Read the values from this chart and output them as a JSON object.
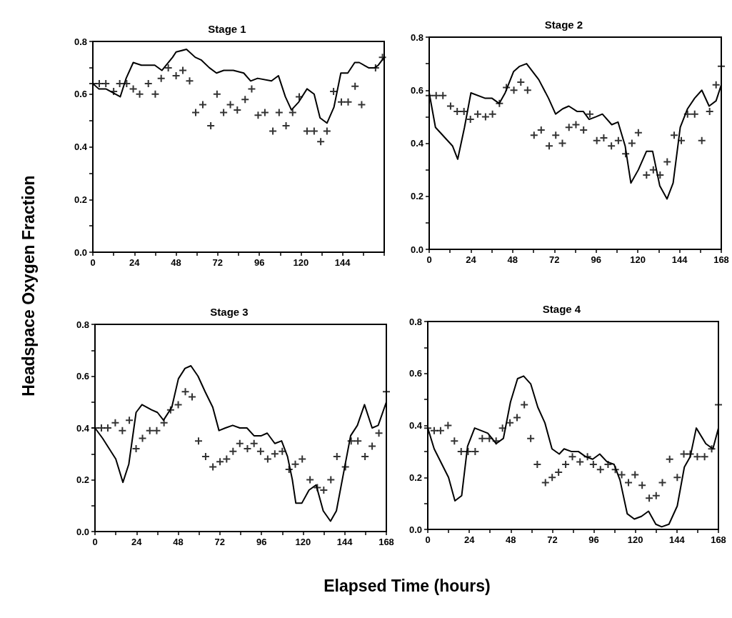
{
  "chart_data": [
    {
      "type": "line",
      "title": "Stage 1",
      "xlabel": "Elapsed Time (hours)",
      "ylabel": "Headspace Oxygen Fraction",
      "xlim": [
        0,
        168
      ],
      "xticks": [
        0,
        {
          "value": 12,
          "label": null
        },
        24,
        {
          "value": 36,
          "label": null
        },
        48,
        {
          "value": 60,
          "label": null
        },
        72,
        {
          "value": 84,
          "label": null
        },
        96,
        {
          "value": 108,
          "label": null
        },
        120,
        {
          "value": 132,
          "label": null
        },
        144,
        {
          "value": 156,
          "label": null
        },
        {
          "value": 168,
          "label": null
        }
      ],
      "ylim": [
        0,
        0.8
      ],
      "yticks": [
        {
          "value": 0,
          "label": "0.0"
        },
        {
          "value": 0.1,
          "label": null
        },
        0.2,
        {
          "value": 0.3,
          "label": null
        },
        0.4,
        {
          "value": 0.5,
          "label": null
        },
        0.6,
        {
          "value": 0.7,
          "label": null
        },
        0.8
      ],
      "series": [
        {
          "type": "line",
          "marker": "none",
          "color": "#000000",
          "x": [
            0,
            3.4,
            7.5,
            15.8,
            19.2,
            23.3,
            28,
            35.7,
            39.8,
            46,
            48,
            54,
            59,
            62.4,
            67.2,
            71.3,
            75.5,
            81,
            87,
            91,
            95,
            103,
            107,
            111,
            114.5,
            118.7,
            123.5,
            127.6,
            131,
            135,
            139,
            143,
            147,
            151,
            153.6,
            159,
            162.5,
            164.6,
            168
          ],
          "values": [
            0.64,
            0.62,
            0.62,
            0.59,
            0.66,
            0.72,
            0.71,
            0.71,
            0.69,
            0.74,
            0.76,
            0.77,
            0.74,
            0.73,
            0.7,
            0.68,
            0.69,
            0.69,
            0.68,
            0.65,
            0.66,
            0.65,
            0.67,
            0.59,
            0.54,
            0.57,
            0.62,
            0.6,
            0.51,
            0.49,
            0.55,
            0.68,
            0.68,
            0.72,
            0.72,
            0.7,
            0.7,
            0.71,
            0.74
          ]
        },
        {
          "type": "scatter",
          "marker": "cross",
          "color": "#000000",
          "x": [
            0,
            3.7,
            7.5,
            12,
            15.5,
            19.5,
            23.3,
            27,
            32,
            36,
            39.4,
            43.5,
            48,
            51.9,
            55.8,
            59.3,
            63.4,
            68,
            71.6,
            75.4,
            79.3,
            83.3,
            87.8,
            91.6,
            95.3,
            99.2,
            103.8,
            107.4,
            111.4,
            115.2,
            119,
            123.5,
            127.6,
            131.4,
            135,
            138.8,
            143.3,
            147.2,
            151.2,
            155,
            163,
            167
          ],
          "values": [
            0.64,
            0.64,
            0.64,
            0.61,
            0.64,
            0.64,
            0.62,
            0.6,
            0.64,
            0.6,
            0.66,
            0.7,
            0.67,
            0.69,
            0.65,
            0.53,
            0.56,
            0.48,
            0.6,
            0.53,
            0.56,
            0.54,
            0.58,
            0.62,
            0.52,
            0.53,
            0.46,
            0.53,
            0.48,
            0.53,
            0.59,
            0.46,
            0.46,
            0.42,
            0.46,
            0.61,
            0.57,
            0.57,
            0.63,
            0.56,
            0.7,
            0.74
          ]
        }
      ]
    },
    {
      "type": "line",
      "title": "Stage 2",
      "xlim": [
        0,
        168
      ],
      "xticks": [
        0,
        {
          "value": 12,
          "label": null
        },
        24,
        {
          "value": 36,
          "label": null
        },
        48,
        {
          "value": 60,
          "label": null
        },
        72,
        {
          "value": 84,
          "label": null
        },
        96,
        {
          "value": 108,
          "label": null
        },
        120,
        {
          "value": 132,
          "label": null
        },
        144,
        {
          "value": 156,
          "label": null
        },
        168
      ],
      "ylim": [
        0,
        0.8
      ],
      "yticks": [
        {
          "value": 0,
          "label": "0.0"
        },
        {
          "value": 0.1,
          "label": null
        },
        0.2,
        {
          "value": 0.3,
          "label": null
        },
        0.4,
        {
          "value": 0.5,
          "label": null
        },
        0.6,
        {
          "value": 0.7,
          "label": null
        },
        0.8
      ],
      "series": [
        {
          "type": "line",
          "marker": "none",
          "color": "#000000",
          "x": [
            0,
            3.6,
            13.4,
            16.4,
            20.3,
            24,
            32,
            36,
            40.3,
            43.7,
            48.5,
            52,
            56,
            63,
            68.6,
            72.7,
            76.8,
            80.3,
            85,
            88.6,
            92,
            96,
            99.6,
            105,
            108.6,
            112.7,
            116,
            120.3,
            125,
            128.5,
            132.6,
            136.8,
            140.3,
            144.4,
            148.6,
            152.7,
            156.8,
            161,
            165,
            168
          ],
          "values": [
            0.59,
            0.46,
            0.39,
            0.34,
            0.46,
            0.59,
            0.57,
            0.57,
            0.55,
            0.59,
            0.67,
            0.69,
            0.7,
            0.64,
            0.57,
            0.51,
            0.53,
            0.54,
            0.52,
            0.52,
            0.49,
            0.5,
            0.51,
            0.47,
            0.48,
            0.39,
            0.25,
            0.3,
            0.37,
            0.37,
            0.24,
            0.19,
            0.25,
            0.46,
            0.53,
            0.57,
            0.6,
            0.54,
            0.56,
            0.62
          ]
        },
        {
          "type": "scatter",
          "marker": "cross",
          "color": "#000000",
          "x": [
            0,
            4,
            7.9,
            12.3,
            16.1,
            20,
            23.7,
            27.9,
            32.4,
            36.4,
            40.4,
            44.4,
            48.7,
            52.7,
            56.6,
            60.3,
            64.4,
            69,
            72.8,
            76.6,
            80.4,
            84.4,
            88.8,
            92.4,
            96.4,
            100.4,
            104.8,
            108.8,
            113,
            116.6,
            120.3,
            125,
            128.9,
            132.8,
            136.9,
            140.9,
            145,
            148.6,
            152.7,
            156.8,
            161.3,
            165,
            168
          ],
          "values": [
            0.58,
            0.58,
            0.58,
            0.54,
            0.52,
            0.52,
            0.49,
            0.51,
            0.5,
            0.51,
            0.55,
            0.61,
            0.6,
            0.63,
            0.6,
            0.43,
            0.45,
            0.39,
            0.43,
            0.4,
            0.46,
            0.47,
            0.45,
            0.51,
            0.41,
            0.42,
            0.39,
            0.41,
            0.36,
            0.4,
            0.44,
            0.28,
            0.3,
            0.28,
            0.33,
            0.43,
            0.41,
            0.51,
            0.51,
            0.41,
            0.52,
            0.62,
            0.69
          ]
        }
      ]
    },
    {
      "type": "line",
      "title": "Stage 3",
      "xlim": [
        0,
        168
      ],
      "xticks": [
        0,
        {
          "value": 12,
          "label": null
        },
        24,
        {
          "value": 36,
          "label": null
        },
        48,
        {
          "value": 60,
          "label": null
        },
        72,
        {
          "value": 84,
          "label": null
        },
        96,
        {
          "value": 108,
          "label": null
        },
        120,
        {
          "value": 132,
          "label": null
        },
        144,
        {
          "value": 156,
          "label": null
        },
        168
      ],
      "ylim": [
        0,
        0.8
      ],
      "yticks": [
        {
          "value": 0,
          "label": "0.0"
        },
        {
          "value": 0.1,
          "label": null
        },
        0.2,
        {
          "value": 0.3,
          "label": null
        },
        0.4,
        {
          "value": 0.5,
          "label": null
        },
        0.6,
        {
          "value": 0.7,
          "label": null
        },
        0.8
      ],
      "series": [
        {
          "type": "line",
          "marker": "none",
          "color": "#000000",
          "x": [
            0,
            4.4,
            12,
            16.1,
            19.5,
            23.7,
            27.1,
            32.6,
            36,
            39.5,
            44.3,
            48.1,
            51.9,
            55.3,
            59.4,
            63.5,
            67.9,
            71.5,
            75.2,
            79.4,
            83.5,
            87.6,
            91.7,
            95.9,
            99.3,
            103.7,
            107.6,
            111,
            113.8,
            115.8,
            119.3,
            123.4,
            127.5,
            131.6,
            135.8,
            139.2,
            144,
            147.4,
            151.3,
            155.4,
            159.8,
            163.3,
            168
          ],
          "values": [
            0.4,
            0.36,
            0.28,
            0.19,
            0.26,
            0.46,
            0.49,
            0.47,
            0.46,
            0.43,
            0.48,
            0.59,
            0.63,
            0.64,
            0.6,
            0.54,
            0.48,
            0.39,
            0.4,
            0.41,
            0.4,
            0.4,
            0.37,
            0.37,
            0.38,
            0.34,
            0.35,
            0.29,
            0.2,
            0.11,
            0.11,
            0.16,
            0.18,
            0.08,
            0.04,
            0.08,
            0.25,
            0.37,
            0.41,
            0.49,
            0.4,
            0.41,
            0.5
          ]
        },
        {
          "type": "scatter",
          "marker": "cross",
          "color": "#000000",
          "x": [
            0,
            3.7,
            7.4,
            11.7,
            15.8,
            19.8,
            23.7,
            27.4,
            31.6,
            35.6,
            39.8,
            43.6,
            48,
            52.1,
            56,
            59.7,
            63.8,
            68,
            72.1,
            75.9,
            79.6,
            83.5,
            87.9,
            91.7,
            95.5,
            99.6,
            103.7,
            108,
            111.9,
            115.5,
            119.5,
            124,
            128.2,
            131.9,
            136,
            139.5,
            144.4,
            147.7,
            151.6,
            155.7,
            159.8,
            163.7,
            168
          ],
          "values": [
            0.4,
            0.4,
            0.4,
            0.42,
            0.39,
            0.43,
            0.32,
            0.36,
            0.39,
            0.39,
            0.42,
            0.47,
            0.49,
            0.54,
            0.52,
            0.35,
            0.29,
            0.25,
            0.27,
            0.28,
            0.31,
            0.34,
            0.32,
            0.34,
            0.31,
            0.28,
            0.3,
            0.31,
            0.24,
            0.26,
            0.28,
            0.2,
            0.17,
            0.16,
            0.2,
            0.29,
            0.25,
            0.35,
            0.35,
            0.29,
            0.33,
            0.38,
            0.54
          ]
        }
      ]
    },
    {
      "type": "line",
      "title": "Stage 4",
      "xlim": [
        0,
        168
      ],
      "xticks": [
        0,
        {
          "value": 12,
          "label": null
        },
        24,
        {
          "value": 36,
          "label": null
        },
        48,
        {
          "value": 60,
          "label": null
        },
        72,
        {
          "value": 84,
          "label": null
        },
        96,
        {
          "value": 108,
          "label": null
        },
        120,
        {
          "value": 132,
          "label": null
        },
        144,
        {
          "value": 156,
          "label": null
        },
        168
      ],
      "ylim": [
        0,
        0.8
      ],
      "yticks": [
        {
          "value": 0,
          "label": "0.0"
        },
        {
          "value": 0.1,
          "label": null
        },
        0.2,
        {
          "value": 0.3,
          "label": null
        },
        0.4,
        {
          "value": 0.5,
          "label": null
        },
        0.6,
        {
          "value": 0.7,
          "label": null
        },
        0.8
      ],
      "series": [
        {
          "type": "line",
          "marker": "none",
          "color": "#000000",
          "x": [
            0,
            3.7,
            12,
            15.7,
            19.6,
            23,
            27.1,
            34.7,
            39.5,
            43.7,
            47.8,
            51.9,
            55.4,
            59.5,
            63.6,
            67.7,
            71.8,
            76,
            78.8,
            82.9,
            87,
            91.2,
            95.3,
            99.4,
            103.6,
            107.7,
            111.1,
            115.3,
            119.4,
            123.5,
            127.6,
            131.8,
            135.2,
            139.4,
            144.2,
            148.3,
            151.7,
            155.2,
            160.7,
            164.8,
            168
          ],
          "values": [
            0.39,
            0.31,
            0.2,
            0.11,
            0.13,
            0.32,
            0.39,
            0.37,
            0.33,
            0.35,
            0.49,
            0.58,
            0.59,
            0.56,
            0.47,
            0.41,
            0.31,
            0.29,
            0.31,
            0.3,
            0.3,
            0.28,
            0.27,
            0.29,
            0.26,
            0.25,
            0.19,
            0.06,
            0.04,
            0.05,
            0.07,
            0.02,
            0.01,
            0.02,
            0.09,
            0.24,
            0.28,
            0.39,
            0.33,
            0.31,
            0.39
          ]
        },
        {
          "type": "scatter",
          "marker": "cross",
          "color": "#000000",
          "x": [
            0,
            3.7,
            7.4,
            11.7,
            15.4,
            19.3,
            23.3,
            27.4,
            31.5,
            35.6,
            39.5,
            43.2,
            47.5,
            51.6,
            55.8,
            59.5,
            63.3,
            68,
            71.9,
            75.6,
            79.7,
            83.6,
            88,
            92.3,
            95.7,
            99.8,
            104.2,
            108.4,
            112.1,
            116,
            119.8,
            123.9,
            128,
            132,
            135.6,
            139.8,
            144.2,
            148,
            151.7,
            155.8,
            160,
            164.1,
            168
          ],
          "values": [
            0.39,
            0.38,
            0.38,
            0.4,
            0.34,
            0.3,
            0.3,
            0.3,
            0.35,
            0.35,
            0.34,
            0.39,
            0.41,
            0.43,
            0.48,
            0.35,
            0.25,
            0.18,
            0.2,
            0.22,
            0.25,
            0.28,
            0.26,
            0.28,
            0.25,
            0.23,
            0.25,
            0.23,
            0.21,
            0.18,
            0.21,
            0.17,
            0.12,
            0.13,
            0.18,
            0.27,
            0.2,
            0.29,
            0.29,
            0.28,
            0.28,
            0.31,
            0.48
          ]
        }
      ]
    }
  ]
}
